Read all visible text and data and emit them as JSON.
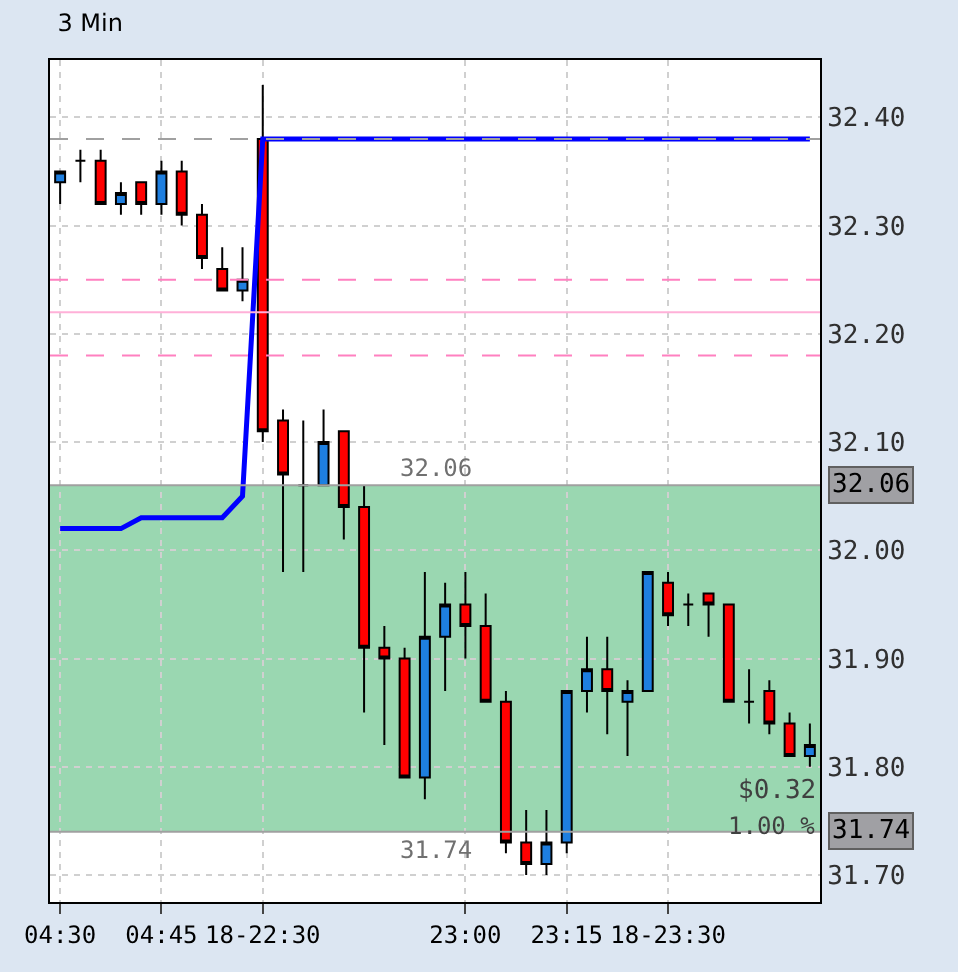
{
  "chart_data": {
    "type": "candlestick",
    "title": "3 Min",
    "categories": [
      "04:30",
      null,
      null,
      null,
      null,
      "04:45",
      null,
      null,
      null,
      null,
      "18-22:30",
      null,
      null,
      null,
      null,
      null,
      null,
      null,
      null,
      null,
      "23:00",
      null,
      null,
      null,
      null,
      "23:15",
      null,
      null,
      null,
      null,
      "18-23:30",
      null,
      null,
      null,
      null,
      null,
      null,
      null
    ],
    "ohlc": [
      [
        32.34,
        32.35,
        32.32,
        32.35
      ],
      [
        32.36,
        32.37,
        32.34,
        32.36
      ],
      [
        32.36,
        32.37,
        32.32,
        32.32
      ],
      [
        32.32,
        32.34,
        32.31,
        32.33
      ],
      [
        32.34,
        32.34,
        32.31,
        32.32
      ],
      [
        32.32,
        32.36,
        32.31,
        32.35
      ],
      [
        32.35,
        32.36,
        32.3,
        32.31
      ],
      [
        32.31,
        32.32,
        32.26,
        32.27
      ],
      [
        32.26,
        32.28,
        32.24,
        32.24
      ],
      [
        32.24,
        32.28,
        32.23,
        32.25
      ],
      [
        32.38,
        32.43,
        32.1,
        32.11
      ],
      [
        32.12,
        32.13,
        31.98,
        32.07
      ],
      [
        32.06,
        32.12,
        31.98,
        32.06
      ],
      [
        32.06,
        32.13,
        32.06,
        32.1
      ],
      [
        32.11,
        32.11,
        32.01,
        32.04
      ],
      [
        32.04,
        32.06,
        31.85,
        31.91
      ],
      [
        31.91,
        31.93,
        31.82,
        31.9
      ],
      [
        31.9,
        31.91,
        31.79,
        31.79
      ],
      [
        31.79,
        31.98,
        31.77,
        31.92
      ],
      [
        31.92,
        31.97,
        31.87,
        31.95
      ],
      [
        31.95,
        31.98,
        31.9,
        31.93
      ],
      [
        31.93,
        31.96,
        31.86,
        31.86
      ],
      [
        31.86,
        31.87,
        31.72,
        31.73
      ],
      [
        31.73,
        31.76,
        31.7,
        31.71
      ],
      [
        31.71,
        31.76,
        31.7,
        31.73
      ],
      [
        31.73,
        31.87,
        31.72,
        31.87
      ],
      [
        31.87,
        31.92,
        31.85,
        31.89
      ],
      [
        31.89,
        31.92,
        31.83,
        31.87
      ],
      [
        31.86,
        31.88,
        31.81,
        31.87
      ],
      [
        31.87,
        31.98,
        31.87,
        31.98
      ],
      [
        31.97,
        31.98,
        31.93,
        31.94
      ],
      [
        31.95,
        31.96,
        31.93,
        31.95
      ],
      [
        31.96,
        31.96,
        31.92,
        31.95
      ],
      [
        31.95,
        31.95,
        31.86,
        31.86
      ],
      [
        31.86,
        31.89,
        31.84,
        31.86
      ],
      [
        31.87,
        31.88,
        31.83,
        31.84
      ],
      [
        31.84,
        31.85,
        31.81,
        31.81
      ],
      [
        31.81,
        31.84,
        31.8,
        31.82
      ]
    ],
    "colors": [
      "#1e7fe0",
      "#000000",
      "#ff0000",
      "#1e7fe0",
      "#ff0000",
      "#1e7fe0",
      "#ff0000",
      "#ff0000",
      "#ff0000",
      "#1e7fe0",
      "#ff0000",
      "#ff0000",
      "#000000",
      "#1e7fe0",
      "#ff0000",
      "#ff0000",
      "#ff0000",
      "#ff0000",
      "#1e7fe0",
      "#1e7fe0",
      "#ff0000",
      "#ff0000",
      "#ff0000",
      "#ff0000",
      "#1e7fe0",
      "#1e7fe0",
      "#1e7fe0",
      "#ff0000",
      "#1e7fe0",
      "#1e7fe0",
      "#ff0000",
      "#000000",
      "#ff0000",
      "#ff0000",
      "#000000",
      "#ff0000",
      "#ff0000",
      "#1e7fe0"
    ],
    "series": [
      {
        "type": "line",
        "color": "#0000ff",
        "values": [
          32.02,
          32.02,
          32.02,
          32.02,
          32.03,
          32.03,
          32.03,
          32.03,
          32.03,
          32.05,
          32.38,
          32.38,
          32.38,
          32.38,
          32.38,
          32.38,
          32.38,
          32.38,
          32.38,
          32.38,
          32.38,
          32.38,
          32.38,
          32.38,
          32.38,
          32.38,
          32.38,
          32.38,
          32.38,
          32.38,
          32.38,
          32.38,
          32.38,
          32.38,
          32.38,
          32.38,
          32.38,
          32.38
        ]
      }
    ],
    "ylim": [
      31.675,
      32.453
    ],
    "yticks": [
      {
        "value": 31.7,
        "label": "31.70"
      },
      {
        "value": 31.8,
        "label": "31.80"
      },
      {
        "value": 31.9,
        "label": "31.90"
      },
      {
        "value": 32.0,
        "label": "32.00"
      },
      {
        "value": 32.1,
        "label": "32.10"
      },
      {
        "value": 32.2,
        "label": "32.20"
      },
      {
        "value": 32.3,
        "label": "32.30"
      },
      {
        "value": 32.4,
        "label": "32.40"
      }
    ],
    "ref_lines": [
      {
        "axis": "y",
        "value": 32.38,
        "color": "#a0a0a0",
        "line_style": "dashed"
      },
      {
        "axis": "y",
        "value": 32.25,
        "color": "#ff80c0",
        "line_style": "dashed"
      },
      {
        "axis": "y",
        "value": 32.22,
        "color": "#ffb0d8",
        "line_style": "solid"
      },
      {
        "axis": "y",
        "value": 32.18,
        "color": "#ff80c0",
        "line_style": "dashed"
      },
      {
        "axis": "y",
        "value": 32.06,
        "color": "#a0a0a0",
        "line_style": "solid",
        "label": "32.06"
      },
      {
        "axis": "y",
        "value": 31.74,
        "color": "#a0a0a0",
        "line_style": "solid",
        "label": "31.74"
      }
    ],
    "bands": [
      {
        "axis": "y",
        "from": 31.74,
        "to": 32.06,
        "color": "#8fd3a8"
      }
    ],
    "annotations": [
      {
        "text": "32.06",
        "y": 32.06
      },
      {
        "text": "31.74",
        "y": 31.74
      },
      "$0.32",
      "1.00 %"
    ],
    "grid": true,
    "line_style": "solid",
    "marker": "none"
  }
}
